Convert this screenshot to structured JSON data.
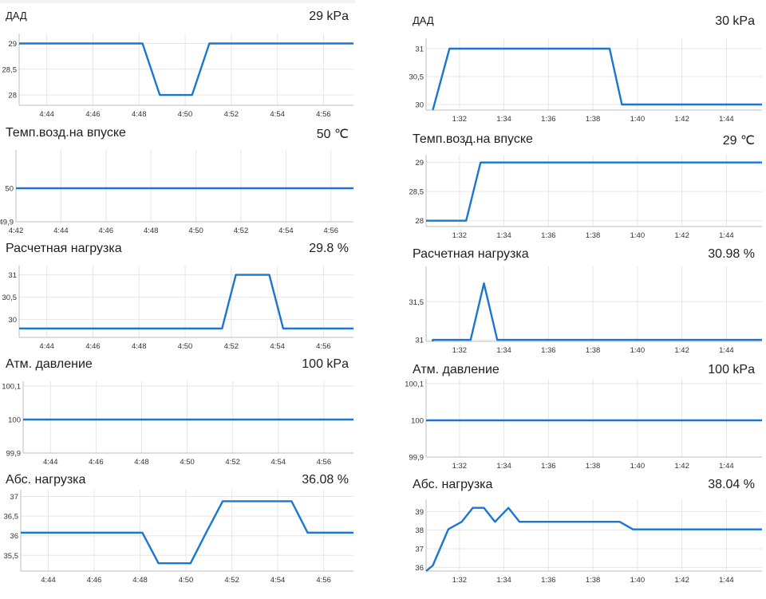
{
  "colors": {
    "line": "#1976d2",
    "grid": "#e6e6e6"
  },
  "panels": {
    "left": [
      {
        "title": "ДАД",
        "value": "29 kPa"
      },
      {
        "title": "Темп.возд.на впуске",
        "value": "50 ℃"
      },
      {
        "title": "Расчетная нагрузка",
        "value": "29.8 %"
      },
      {
        "title": "Атм. давление",
        "value": "100 kPa"
      },
      {
        "title": "Абс. нагрузка",
        "value": "36.08 %"
      }
    ],
    "right": [
      {
        "title": "ДАД",
        "value": "30 kPa"
      },
      {
        "title": "Темп.возд.на впуске",
        "value": "29 ℃"
      },
      {
        "title": "Расчетная нагрузка",
        "value": "30.98 %"
      },
      {
        "title": "Атм. давление",
        "value": "100 kPa"
      },
      {
        "title": "Абс. нагрузка",
        "value": "38.04 %"
      }
    ]
  },
  "chart_data": [
    {
      "type": "line",
      "title": "ДАД",
      "unit": "kPa",
      "xticks": [
        "4:44",
        "4:46",
        "4:48",
        "4:50",
        "4:52",
        "4:54",
        "4:56"
      ],
      "xlim": [
        42.8,
        57.3
      ],
      "x_tick_values": [
        44,
        46,
        48,
        50,
        52,
        54,
        56
      ],
      "yticks": [
        "29",
        "28,5",
        "28"
      ],
      "y_tick_values": [
        29,
        28.5,
        28
      ],
      "ylim": [
        27.8,
        29.1
      ],
      "x": [
        42.8,
        48.15,
        48.9,
        50.3,
        51.05,
        57.3
      ],
      "y": [
        29,
        29,
        28,
        28,
        29,
        29
      ]
    },
    {
      "type": "line",
      "title": "Темп.возд.на впуске",
      "unit": "℃",
      "xticks": [
        "4:42",
        "4:44",
        "4:46",
        "4:48",
        "4:50",
        "4:52",
        "4:54",
        "4:56"
      ],
      "xlim": [
        42.0,
        57.0
      ],
      "x_tick_values": [
        42,
        44,
        46,
        48,
        50,
        52,
        54,
        56
      ],
      "yticks": [
        "50",
        "49,9"
      ],
      "y_tick_values": [
        50,
        49.9
      ],
      "ylim": [
        49.9,
        50.1
      ],
      "x": [
        42.0,
        57.0
      ],
      "y": [
        50,
        50
      ]
    },
    {
      "type": "line",
      "title": "Расчетная нагрузка",
      "unit": "%",
      "xticks": [
        "4:44",
        "4:46",
        "4:48",
        "4:50",
        "4:52",
        "4:54",
        "4:56"
      ],
      "xlim": [
        42.8,
        57.3
      ],
      "x_tick_values": [
        44,
        46,
        48,
        50,
        52,
        54,
        56
      ],
      "yticks": [
        "31",
        "30,5",
        "30"
      ],
      "y_tick_values": [
        31,
        30.5,
        30
      ],
      "ylim": [
        29.6,
        31.1
      ],
      "x": [
        42.8,
        51.6,
        52.2,
        53.65,
        54.25,
        57.3
      ],
      "y": [
        29.8,
        29.8,
        31,
        31,
        29.8,
        29.8
      ]
    },
    {
      "type": "line",
      "title": "Атм. давление",
      "unit": "kPa",
      "xticks": [
        "4:44",
        "4:46",
        "4:48",
        "4:50",
        "4:52",
        "4:54",
        "4:56"
      ],
      "xlim": [
        42.8,
        57.3
      ],
      "x_tick_values": [
        44,
        46,
        48,
        50,
        52,
        54,
        56
      ],
      "yticks": [
        "100,1",
        "100",
        "99,9"
      ],
      "y_tick_values": [
        100.1,
        100,
        99.9
      ],
      "ylim": [
        99.9,
        100.1
      ],
      "x": [
        42.8,
        57.3
      ],
      "y": [
        100,
        100
      ]
    },
    {
      "type": "line",
      "title": "Абс. нагрузка",
      "unit": "%",
      "xticks": [
        "4:44",
        "4:46",
        "4:48",
        "4:50",
        "4:52",
        "4:54",
        "4:56"
      ],
      "xlim": [
        42.8,
        57.3
      ],
      "x_tick_values": [
        44,
        46,
        48,
        50,
        52,
        54,
        56
      ],
      "yticks": [
        "37",
        "36,5",
        "36",
        "35,5"
      ],
      "y_tick_values": [
        37,
        36.5,
        36,
        35.5
      ],
      "ylim": [
        35.1,
        37.05
      ],
      "x": [
        42.8,
        48.1,
        48.8,
        50.2,
        50.9,
        51.6,
        54.6,
        55.3,
        57.3
      ],
      "y": [
        36.08,
        36.08,
        35.3,
        35.3,
        36.1,
        36.88,
        36.88,
        36.08,
        36.08
      ]
    },
    {
      "type": "line",
      "title": "ДАД",
      "unit": "kPa",
      "xticks": [
        "1:32",
        "1:34",
        "1:36",
        "1:38",
        "1:40",
        "1:42",
        "1:44"
      ],
      "xlim": [
        30.5,
        45.6
      ],
      "x_tick_values": [
        32,
        34,
        36,
        38,
        40,
        42,
        44
      ],
      "yticks": [
        "31",
        "30,5",
        "30"
      ],
      "y_tick_values": [
        31,
        30.5,
        30
      ],
      "ylim": [
        29.9,
        31.1
      ],
      "x": [
        30.8,
        31.55,
        38.75,
        39.3,
        45.6
      ],
      "y": [
        29.9,
        31,
        31,
        30,
        30
      ]
    },
    {
      "type": "line",
      "title": "Темп.возд.на впуске",
      "unit": "℃",
      "xticks": [
        "1:32",
        "1:34",
        "1:36",
        "1:38",
        "1:40",
        "1:42",
        "1:44"
      ],
      "xlim": [
        30.5,
        45.6
      ],
      "x_tick_values": [
        32,
        34,
        36,
        38,
        40,
        42,
        44
      ],
      "yticks": [
        "29",
        "28,5",
        "28"
      ],
      "y_tick_values": [
        29,
        28.5,
        28
      ],
      "ylim": [
        27.9,
        29.05
      ],
      "x": [
        30.5,
        32.3,
        32.95,
        45.6
      ],
      "y": [
        28,
        28,
        29,
        29
      ]
    },
    {
      "type": "line",
      "title": "Расчетная нагрузка",
      "unit": "%",
      "xticks": [
        "1:32",
        "1:34",
        "1:36",
        "1:38",
        "1:40",
        "1:42",
        "1:44"
      ],
      "xlim": [
        30.5,
        45.6
      ],
      "x_tick_values": [
        32,
        34,
        36,
        38,
        40,
        42,
        44
      ],
      "yticks": [
        "31,5",
        "31"
      ],
      "y_tick_values": [
        31.5,
        31
      ],
      "ylim": [
        30.98,
        31.9
      ],
      "x": [
        30.8,
        30.8,
        32.5,
        33.1,
        33.7,
        45.6
      ],
      "y": [
        30.98,
        31,
        31,
        31.74,
        31,
        31
      ]
    },
    {
      "type": "line",
      "title": "Атм. давление",
      "unit": "kPa",
      "xticks": [
        "1:32",
        "1:34",
        "1:36",
        "1:38",
        "1:40",
        "1:42",
        "1:44"
      ],
      "xlim": [
        30.5,
        45.6
      ],
      "x_tick_values": [
        32,
        34,
        36,
        38,
        40,
        42,
        44
      ],
      "yticks": [
        "100,1",
        "100",
        "99,9"
      ],
      "y_tick_values": [
        100.1,
        100,
        99.9
      ],
      "ylim": [
        99.9,
        100.1
      ],
      "x": [
        30.5,
        45.6
      ],
      "y": [
        100,
        100
      ]
    },
    {
      "type": "line",
      "title": "Абс. нагрузка",
      "unit": "%",
      "xticks": [
        "1:32",
        "1:34",
        "1:36",
        "1:38",
        "1:40",
        "1:42",
        "1:44"
      ],
      "xlim": [
        30.5,
        45.6
      ],
      "x_tick_values": [
        32,
        34,
        36,
        38,
        40,
        42,
        44
      ],
      "yticks": [
        "39",
        "38",
        "37",
        "36"
      ],
      "y_tick_values": [
        39,
        38,
        37,
        36
      ],
      "ylim": [
        35.8,
        39.4
      ],
      "x": [
        30.5,
        30.8,
        31.5,
        32.1,
        32.6,
        33.1,
        33.6,
        34.2,
        34.7,
        39.2,
        39.8,
        45.6
      ],
      "y": [
        35.8,
        36.1,
        38.05,
        38.45,
        39.2,
        39.2,
        38.45,
        39.2,
        38.45,
        38.45,
        38.04,
        38.04
      ]
    }
  ]
}
